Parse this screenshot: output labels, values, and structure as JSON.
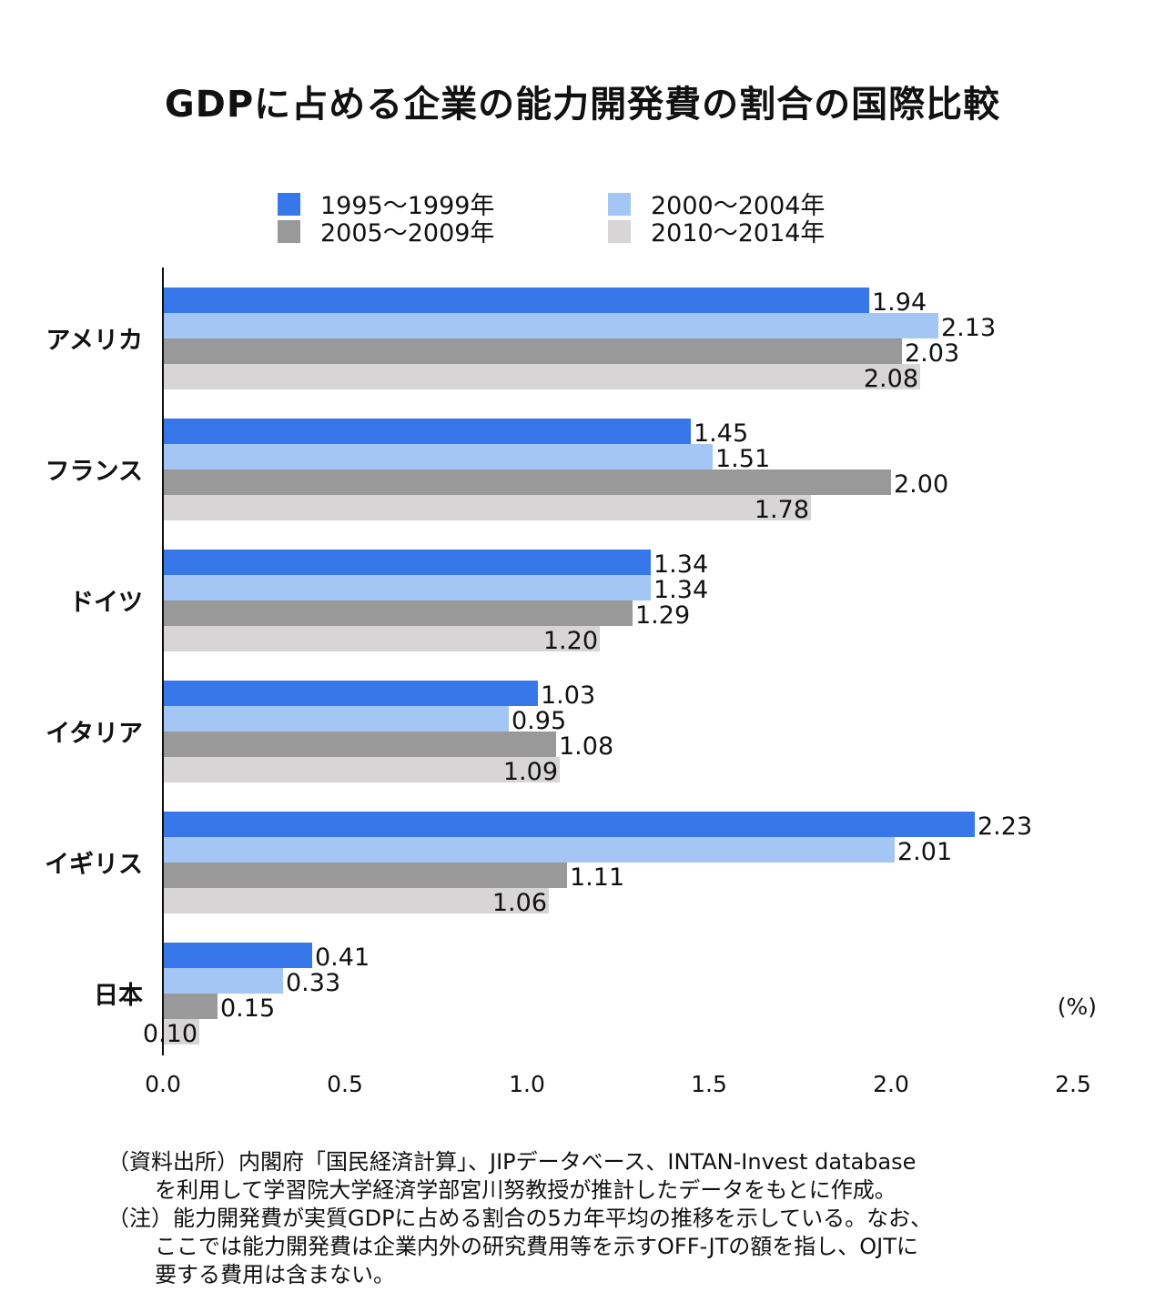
{
  "chart_data": {
    "type": "bar",
    "orientation": "horizontal",
    "title": "GDPに占める企業の能力開発費の割合の国際比較",
    "xlabel": "",
    "unit_label": "(%)",
    "xlim": [
      0,
      2.5
    ],
    "xticks": [
      "0.0",
      "0.5",
      "1.0",
      "1.5",
      "2.0",
      "2.5"
    ],
    "grid": false,
    "legend_placement": "top",
    "categories": [
      "アメリカ",
      "フランス",
      "ドイツ",
      "イタリア",
      "イギリス",
      "日本"
    ],
    "series": [
      {
        "name": "1995〜1999年",
        "color": "#3877ea",
        "values": [
          1.94,
          1.45,
          1.34,
          1.03,
          2.23,
          0.41
        ],
        "labels": [
          "1.94",
          "1.45",
          "1.34",
          "1.03",
          "2.23",
          "0.41"
        ]
      },
      {
        "name": "2000〜2004年",
        "color": "#a3c6f5",
        "values": [
          2.13,
          1.51,
          1.34,
          0.95,
          2.01,
          0.33
        ],
        "labels": [
          "2.13",
          "1.51",
          "1.34",
          "0.95",
          "2.01",
          "0.33"
        ]
      },
      {
        "name": "2005〜2009年",
        "color": "#999999",
        "values": [
          2.03,
          2.0,
          1.29,
          1.08,
          1.11,
          0.15
        ],
        "labels": [
          "2.03",
          "2.00",
          "1.29",
          "1.08",
          "1.11",
          "0.15"
        ]
      },
      {
        "name": "2010〜2014年",
        "color": "#d7d5d6",
        "values": [
          2.08,
          1.78,
          1.2,
          1.09,
          1.06,
          0.1
        ],
        "labels": [
          "2.08",
          "1.78",
          "1.20",
          "1.09",
          "1.06",
          "0.10"
        ]
      }
    ]
  },
  "notes": {
    "source_line1": "（資料出所）内閣府「国民経済計算」、JIPデータベース、INTAN-Invest database",
    "source_line2": "を利用して学習院大学経済学部宮川努教授が推計したデータをもとに作成。",
    "note_line1": "（注）能力開発費が実質GDPに占める割合の5カ年平均の推移を示している。なお、",
    "note_line2": "ここでは能力開発費は企業内外の研究費用等を示すOFF-JTの額を指し、OJTに",
    "note_line3": "要する費用は含まない。"
  }
}
